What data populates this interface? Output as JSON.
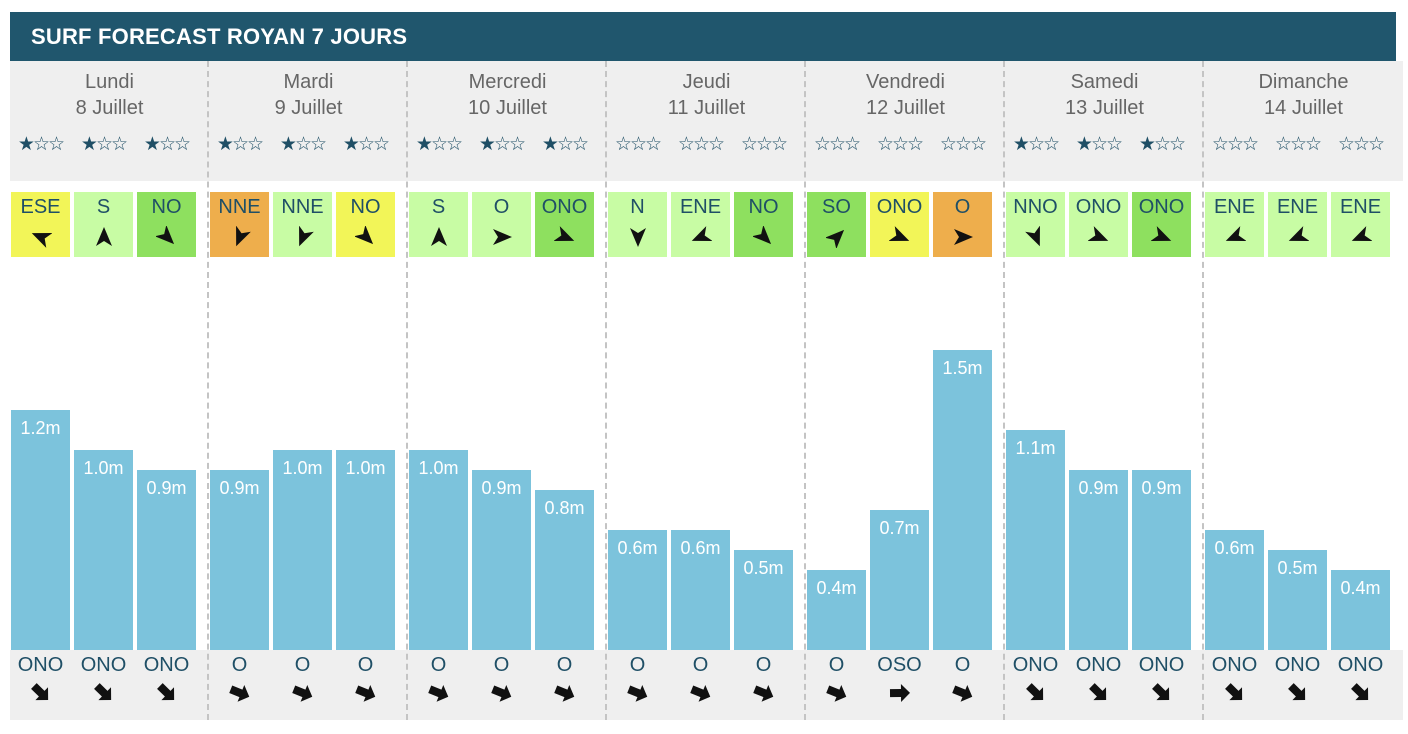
{
  "title": "SURF FORECAST ROYAN 7 JOURS",
  "colors": {
    "header_bg": "#20566d",
    "wave_bar": "#7cc3dc",
    "wind_good": "#8ee05f",
    "wind_ok": "#c8fca4",
    "wind_medium": "#f2f558",
    "wind_bad": "#eeae4c"
  },
  "days": [
    {
      "name": "Lundi",
      "date": "8 Juillet",
      "slots": [
        {
          "rating": 1,
          "wind": "ESE",
          "wind_color": "#f2f558",
          "wave": 1.2,
          "wave_label": "1.2m",
          "swell": "ONO"
        },
        {
          "rating": 1,
          "wind": "S",
          "wind_color": "#c8fca4",
          "wave": 1.0,
          "wave_label": "1.0m",
          "swell": "ONO"
        },
        {
          "rating": 1,
          "wind": "NO",
          "wind_color": "#8ee05f",
          "wave": 0.9,
          "wave_label": "0.9m",
          "swell": "ONO"
        }
      ]
    },
    {
      "name": "Mardi",
      "date": "9 Juillet",
      "slots": [
        {
          "rating": 1,
          "wind": "NNE",
          "wind_color": "#eeae4c",
          "wave": 0.9,
          "wave_label": "0.9m",
          "swell": "O"
        },
        {
          "rating": 1,
          "wind": "NNE",
          "wind_color": "#c8fca4",
          "wave": 1.0,
          "wave_label": "1.0m",
          "swell": "O"
        },
        {
          "rating": 1,
          "wind": "NO",
          "wind_color": "#f2f558",
          "wave": 1.0,
          "wave_label": "1.0m",
          "swell": "O"
        }
      ]
    },
    {
      "name": "Mercredi",
      "date": "10 Juillet",
      "slots": [
        {
          "rating": 1,
          "wind": "S",
          "wind_color": "#c8fca4",
          "wave": 1.0,
          "wave_label": "1.0m",
          "swell": "O"
        },
        {
          "rating": 1,
          "wind": "O",
          "wind_color": "#c8fca4",
          "wave": 0.9,
          "wave_label": "0.9m",
          "swell": "O"
        },
        {
          "rating": 1,
          "wind": "ONO",
          "wind_color": "#8ee05f",
          "wave": 0.8,
          "wave_label": "0.8m",
          "swell": "O"
        }
      ]
    },
    {
      "name": "Jeudi",
      "date": "11 Juillet",
      "slots": [
        {
          "rating": 0,
          "wind": "N",
          "wind_color": "#c8fca4",
          "wave": 0.6,
          "wave_label": "0.6m",
          "swell": "O"
        },
        {
          "rating": 0,
          "wind": "ENE",
          "wind_color": "#c8fca4",
          "wave": 0.6,
          "wave_label": "0.6m",
          "swell": "O"
        },
        {
          "rating": 0,
          "wind": "NO",
          "wind_color": "#8ee05f",
          "wave": 0.5,
          "wave_label": "0.5m",
          "swell": "O"
        }
      ]
    },
    {
      "name": "Vendredi",
      "date": "12 Juillet",
      "slots": [
        {
          "rating": 0,
          "wind": "SO",
          "wind_color": "#8ee05f",
          "wave": 0.4,
          "wave_label": "0.4m",
          "swell": "O"
        },
        {
          "rating": 0,
          "wind": "ONO",
          "wind_color": "#f2f558",
          "wave": 0.7,
          "wave_label": "0.7m",
          "swell": "OSO"
        },
        {
          "rating": 0,
          "wind": "O",
          "wind_color": "#eeae4c",
          "wave": 1.5,
          "wave_label": "1.5m",
          "swell": "O"
        }
      ]
    },
    {
      "name": "Samedi",
      "date": "13 Juillet",
      "slots": [
        {
          "rating": 1,
          "wind": "NNO",
          "wind_color": "#c8fca4",
          "wave": 1.1,
          "wave_label": "1.1m",
          "swell": "ONO"
        },
        {
          "rating": 1,
          "wind": "ONO",
          "wind_color": "#c8fca4",
          "wave": 0.9,
          "wave_label": "0.9m",
          "swell": "ONO"
        },
        {
          "rating": 1,
          "wind": "ONO",
          "wind_color": "#8ee05f",
          "wave": 0.9,
          "wave_label": "0.9m",
          "swell": "ONO"
        }
      ]
    },
    {
      "name": "Dimanche",
      "date": "14 Juillet",
      "slots": [
        {
          "rating": 0,
          "wind": "ENE",
          "wind_color": "#c8fca4",
          "wave": 0.6,
          "wave_label": "0.6m",
          "swell": "ONO"
        },
        {
          "rating": 0,
          "wind": "ENE",
          "wind_color": "#c8fca4",
          "wave": 0.5,
          "wave_label": "0.5m",
          "swell": "ONO"
        },
        {
          "rating": 0,
          "wind": "ENE",
          "wind_color": "#c8fca4",
          "wave": 0.4,
          "wave_label": "0.4m",
          "swell": "ONO"
        }
      ]
    }
  ]
}
